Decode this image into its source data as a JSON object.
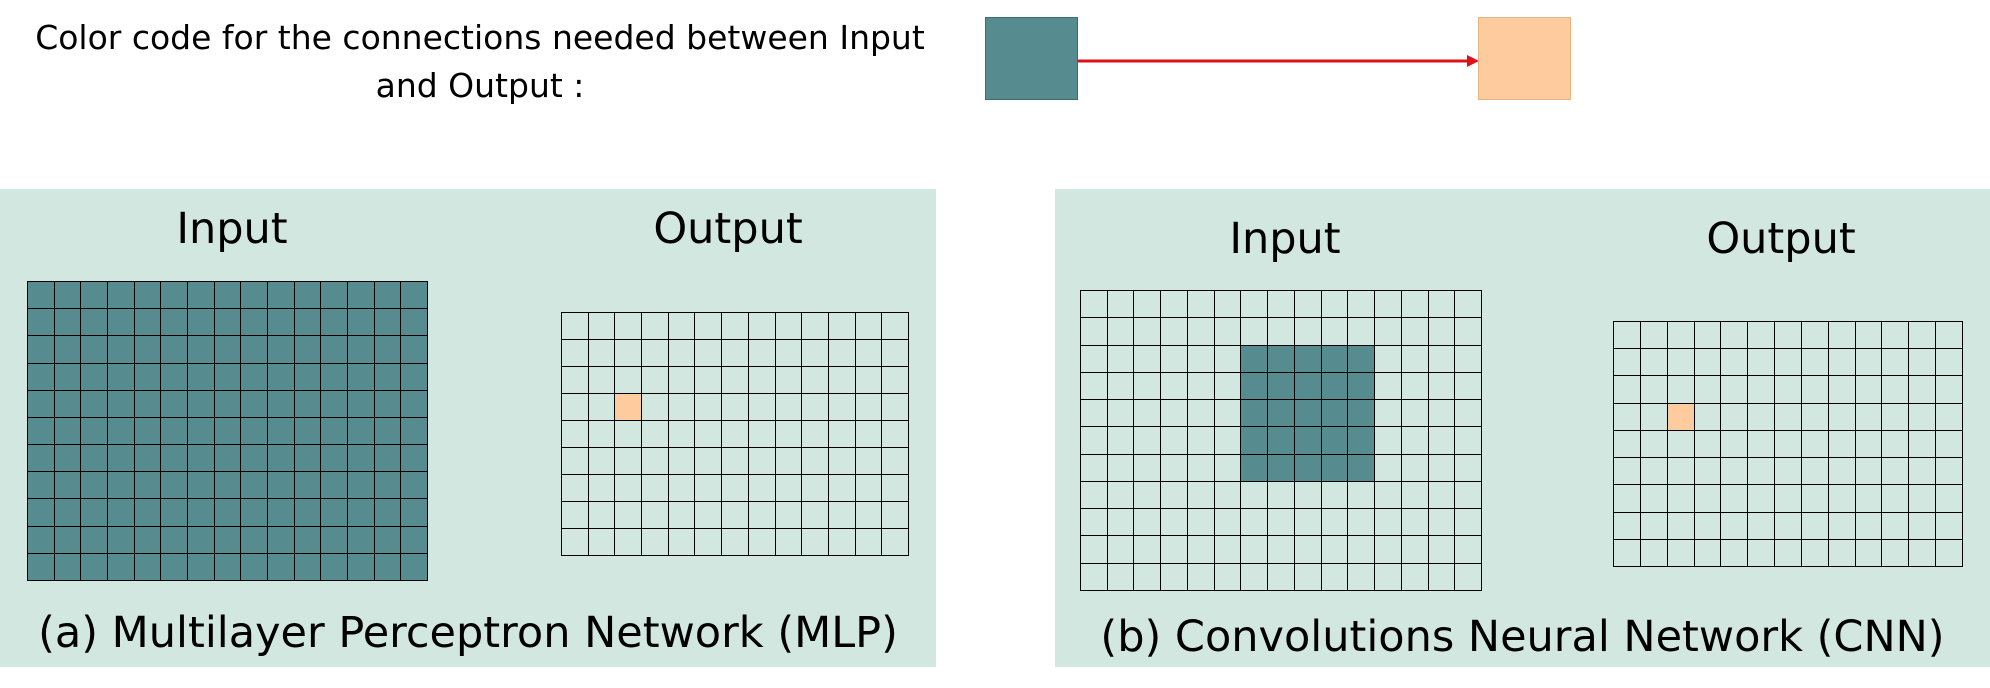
{
  "legend": {
    "text": "Color code for the connections needed between Input and Output :",
    "source_color": "#568b8f",
    "target_color": "#fdcb9d",
    "arrow_color": "#e0101a"
  },
  "panel_background": "#d1e7e0",
  "grid_line_color": "#000000",
  "panels": [
    {
      "id": "mlp",
      "input_label": "Input",
      "output_label": "Output",
      "caption": "(a) Multilayer Perceptron Network (MLP)",
      "input_grid": {
        "rows": 11,
        "cols": 15,
        "highlight": {
          "row_start": 0,
          "row_end": 10,
          "col_start": 0,
          "col_end": 14
        }
      },
      "output_grid": {
        "rows": 9,
        "cols": 13,
        "highlight": {
          "row": 3,
          "col": 2
        }
      }
    },
    {
      "id": "cnn",
      "input_label": "Input",
      "output_label": "Output",
      "caption": "(b) Convolutions Neural Network (CNN)",
      "input_grid": {
        "rows": 11,
        "cols": 15,
        "highlight": {
          "row_start": 2,
          "row_end": 6,
          "col_start": 6,
          "col_end": 10
        }
      },
      "output_grid": {
        "rows": 9,
        "cols": 13,
        "highlight": {
          "row": 3,
          "col": 2
        }
      }
    }
  ]
}
